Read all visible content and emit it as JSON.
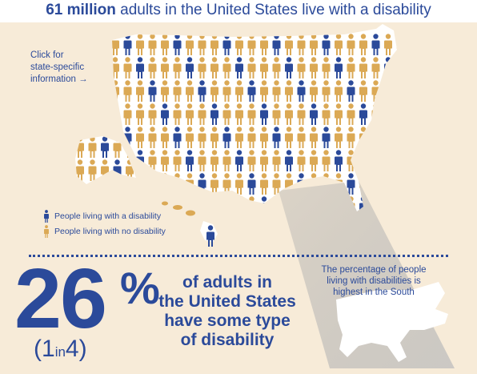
{
  "headline": {
    "bold": "61 million",
    "rest": "adults in the United States live with a disability"
  },
  "click_note": {
    "line1": "Click for",
    "line2": "state-specific",
    "line3": "information →"
  },
  "legend": {
    "with_disability": "People living with a disability",
    "without_disability": "People living with no disability"
  },
  "stat": {
    "number": "26",
    "percent_sign": "%",
    "ratio_open": "(1",
    "ratio_in": "in",
    "ratio_close": "4)"
  },
  "description": {
    "line1": "of adults in",
    "line2": "the United States",
    "line3": "have some type",
    "line4": "of disability"
  },
  "south_note": {
    "line1": "The percentage of people",
    "line2": "living with disabilities is",
    "line3": "highest in the South"
  },
  "colors": {
    "blue": "#2b4a9a",
    "gold": "#dba955",
    "background": "#f7ebd8"
  },
  "stat_value_percent": 26
}
